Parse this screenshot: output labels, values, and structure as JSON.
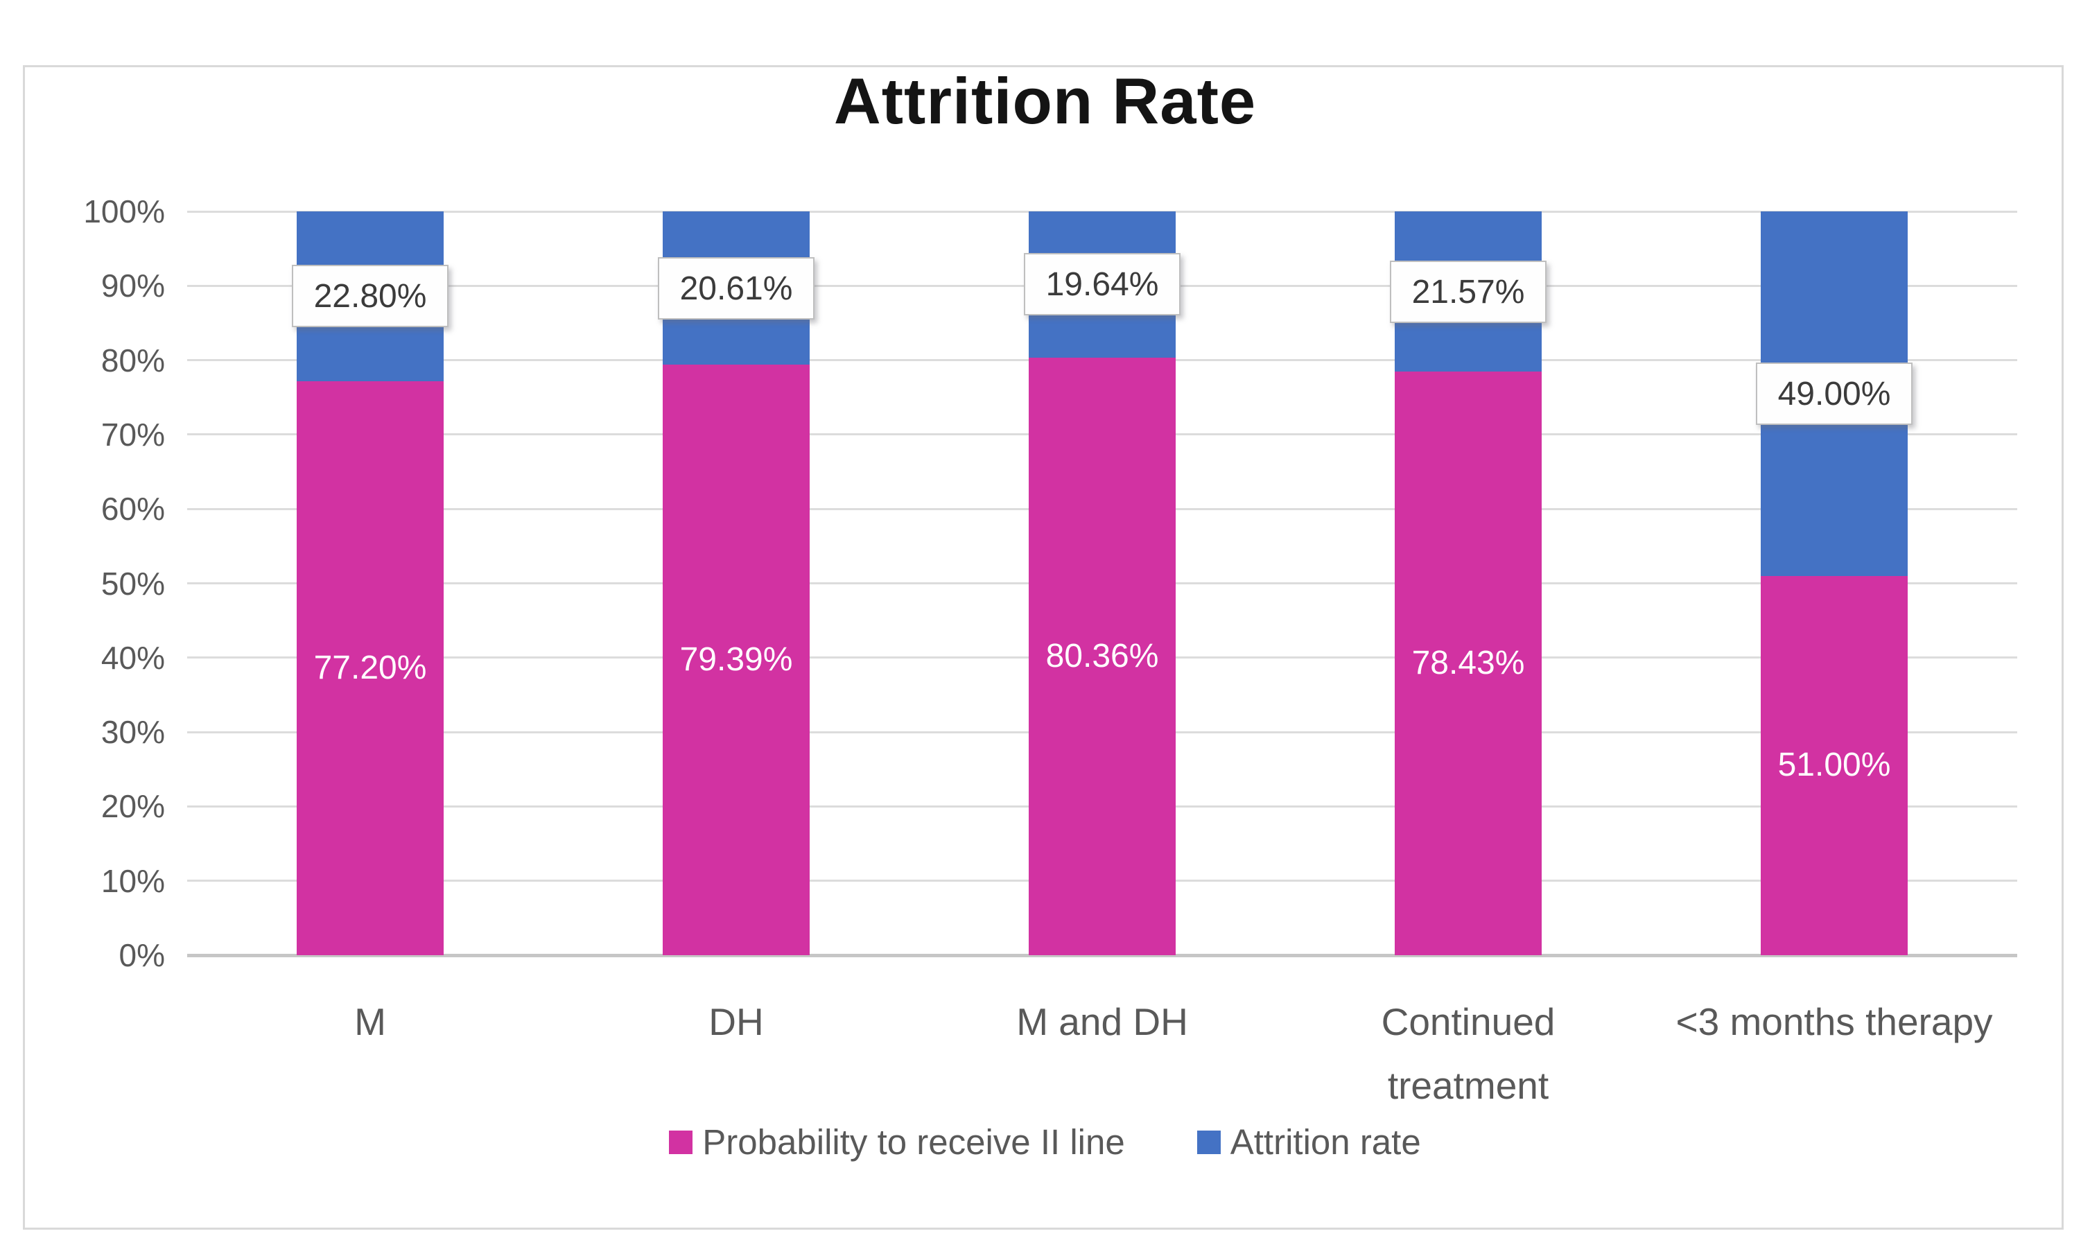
{
  "chart_data": {
    "type": "bar",
    "stacked": true,
    "title": "Attrition Rate",
    "categories": [
      "M",
      "DH",
      "M and DH",
      "Continued\ntreatment",
      "<3 months therapy"
    ],
    "series": [
      {
        "name": "Probability to receive II line",
        "color": "#D232A2",
        "values": [
          77.2,
          79.39,
          80.36,
          78.43,
          51.0
        ],
        "data_labels": [
          "77.20%",
          "79.39%",
          "80.36%",
          "78.43%",
          "51.00%"
        ],
        "label_style": "white-text-inside-segment-center"
      },
      {
        "name": "Attrition rate",
        "color": "#4472C4",
        "values": [
          22.8,
          20.61,
          19.64,
          21.57,
          49.0
        ],
        "data_labels": [
          "22.80%",
          "20.61%",
          "19.64%",
          "21.57%",
          "49.00%"
        ],
        "label_style": "white-boxed-inside-segment-center"
      }
    ],
    "y_axis": {
      "ticks": [
        "100%",
        "90%",
        "80%",
        "70%",
        "60%",
        "50%",
        "40%",
        "30%",
        "20%",
        "10%",
        "0%"
      ],
      "min": 0,
      "max": 100
    },
    "grid": true,
    "legend_position": "bottom"
  },
  "styles": {
    "series_pink": "#D232A2",
    "series_blue": "#4472C4",
    "gridline_color": "#DCDCDC",
    "axis_line_color": "#C6C6C6",
    "tick_text_color": "#595959",
    "category_text_color": "#595959",
    "legend_text_color": "#595959",
    "title_text_color": "#141414",
    "label_box_bg": "#FEFEFE",
    "label_box_border": "#BFBFBF",
    "label_box_text": "#3B3B3B",
    "frame_border": "#D9D9D9"
  }
}
